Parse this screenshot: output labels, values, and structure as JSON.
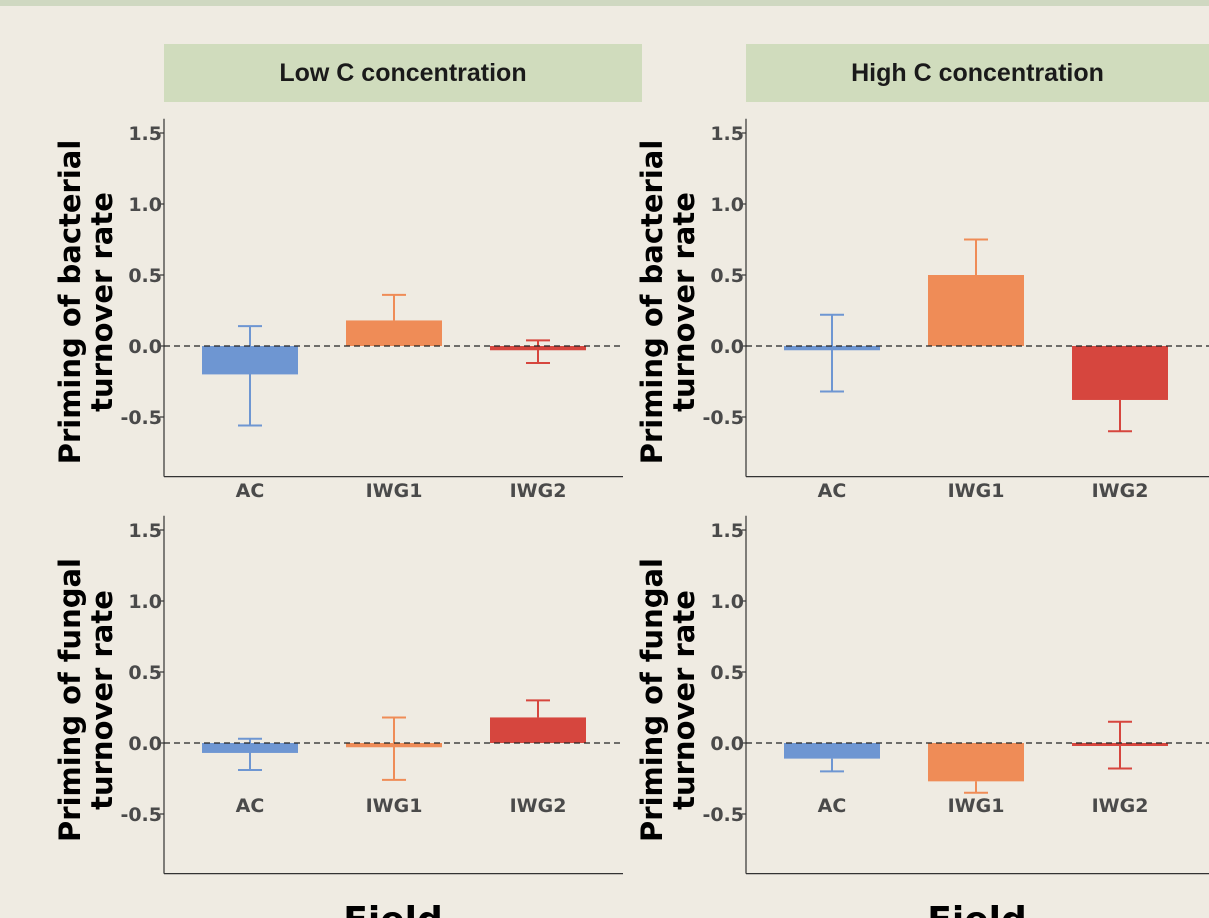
{
  "facets": {
    "left": "Low C concentration",
    "right": "High C concentration"
  },
  "y_axis_labels": {
    "top_line1": "Priming of bacterial",
    "top_line2": "turnover rate",
    "bottom_line1": "Priming of fungal",
    "bottom_line2": "turnover rate"
  },
  "x_axis_label": "Field",
  "colors": {
    "AC": "#6e96d2",
    "IWG1": "#ef8c57",
    "IWG2": "#d6463e"
  },
  "chart_data": [
    {
      "type": "bar",
      "panel": "bacterial / Low C concentration",
      "categories": [
        "AC",
        "IWG1",
        "IWG2"
      ],
      "values": [
        -0.2,
        0.18,
        -0.03
      ],
      "error_low": [
        -0.56,
        null,
        -0.12
      ],
      "error_high": [
        0.14,
        0.36,
        0.04
      ],
      "yticks": [
        1.5,
        1.0,
        0.5,
        0.0,
        -0.5
      ],
      "ylim": [
        -0.92,
        1.6
      ],
      "reference_line": 0.0
    },
    {
      "type": "bar",
      "panel": "bacterial / High C concentration",
      "categories": [
        "AC",
        "IWG1",
        "IWG2"
      ],
      "values": [
        -0.03,
        0.5,
        -0.38
      ],
      "error_low": [
        -0.32,
        null,
        -0.6
      ],
      "error_high": [
        0.22,
        0.75,
        null
      ],
      "yticks": [
        1.5,
        1.0,
        0.5,
        0.0,
        -0.5
      ],
      "ylim": [
        -0.92,
        1.6
      ],
      "reference_line": 0.0
    },
    {
      "type": "bar",
      "panel": "fungal / Low C concentration",
      "categories": [
        "AC",
        "IWG1",
        "IWG2"
      ],
      "values": [
        -0.07,
        -0.03,
        0.18
      ],
      "error_low": [
        -0.19,
        -0.26,
        null
      ],
      "error_high": [
        0.03,
        0.18,
        0.3
      ],
      "yticks": [
        1.5,
        1.0,
        0.5,
        0.0,
        -0.5
      ],
      "ylim": [
        -0.92,
        1.6
      ],
      "reference_line": 0.0
    },
    {
      "type": "bar",
      "panel": "fungal / High C concentration",
      "categories": [
        "AC",
        "IWG1",
        "IWG2"
      ],
      "values": [
        -0.11,
        -0.27,
        -0.01
      ],
      "error_low": [
        -0.2,
        -0.35,
        -0.18
      ],
      "error_high": [
        null,
        null,
        0.15
      ],
      "yticks": [
        1.5,
        1.0,
        0.5,
        0.0,
        -0.5
      ],
      "ylim": [
        -0.92,
        1.6
      ],
      "reference_line": 0.0
    }
  ]
}
